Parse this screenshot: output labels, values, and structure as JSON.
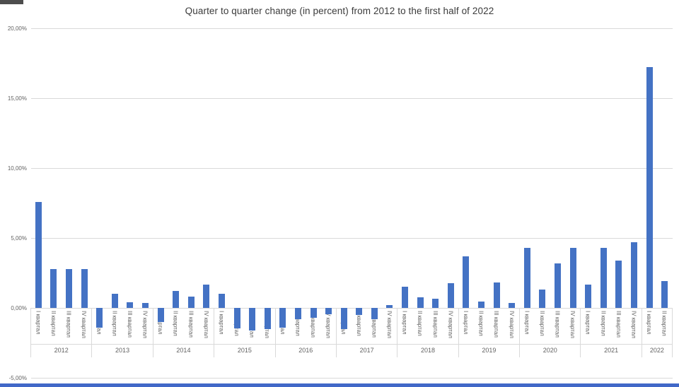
{
  "window": {
    "bottom_edge_color": "#4168c8",
    "background_color": "#ffffff"
  },
  "chart_data": {
    "type": "bar",
    "title": "Quarter to quarter change (in percent) from 2012 to the first half of 2022",
    "legend_position": "none",
    "grid": true,
    "bar_color": "#4472c4",
    "gridline_color": "#d9d9d9",
    "axis_text_color": "#636363",
    "title_color": "#3b3b3b",
    "y_axis": {
      "ylim": [
        -5,
        20
      ],
      "unit": "percent",
      "tick_values": [
        20,
        15,
        10,
        5,
        0,
        -5
      ],
      "tick_labels": [
        "20,00%",
        "15,00%",
        "10,00%",
        "5,00%",
        "0,00%",
        "-5,00%"
      ]
    },
    "x_axis": {
      "quarter_labels": [
        "I квартал",
        "II квартал",
        "III квартал",
        "IV квартал"
      ],
      "year_labels": [
        "2012",
        "2013",
        "2014",
        "2015",
        "2016",
        "2017",
        "2018",
        "2019",
        "2020",
        "2021",
        "2022"
      ]
    },
    "groups": [
      {
        "year": "2012",
        "values": [
          7.6,
          2.8,
          2.8,
          2.8
        ]
      },
      {
        "year": "2013",
        "values": [
          -1.4,
          1.0,
          0.4,
          0.35
        ]
      },
      {
        "year": "2014",
        "values": [
          -1.0,
          1.2,
          0.8,
          1.65
        ]
      },
      {
        "year": "2015",
        "values": [
          1.0,
          -1.45,
          -1.6,
          -1.5
        ]
      },
      {
        "year": "2016",
        "values": [
          -1.4,
          -0.8,
          -0.7,
          -0.45
        ]
      },
      {
        "year": "2017",
        "values": [
          -1.5,
          -0.5,
          -0.8,
          0.2
        ]
      },
      {
        "year": "2018",
        "values": [
          1.5,
          0.75,
          0.65,
          1.75
        ]
      },
      {
        "year": "2019",
        "values": [
          3.7,
          0.45,
          1.8,
          0.35
        ]
      },
      {
        "year": "2020",
        "values": [
          4.3,
          1.3,
          3.2,
          4.3
        ]
      },
      {
        "year": "2021",
        "values": [
          1.65,
          4.3,
          3.4,
          4.7
        ]
      },
      {
        "year": "2022",
        "values": [
          17.2,
          1.9
        ]
      }
    ]
  }
}
